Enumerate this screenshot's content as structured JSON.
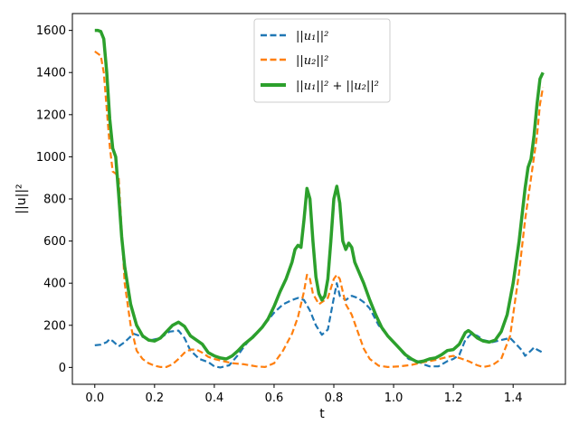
{
  "chart_data": {
    "type": "line",
    "xlabel": "t",
    "ylabel": "||u||²",
    "xlim": [
      -0.075,
      1.575
    ],
    "ylim": [
      -80,
      1680
    ],
    "x_ticks": [
      0.0,
      0.2,
      0.4,
      0.6,
      0.8,
      1.0,
      1.2,
      1.4
    ],
    "x_tick_labels": [
      "0.0",
      "0.2",
      "0.4",
      "0.6",
      "0.8",
      "1.0",
      "1.2",
      "1.4"
    ],
    "y_ticks": [
      0,
      200,
      400,
      600,
      800,
      1000,
      1200,
      1400,
      1600
    ],
    "y_tick_labels": [
      "0",
      "200",
      "400",
      "600",
      "800",
      "1000",
      "1200",
      "1400",
      "1600"
    ],
    "grid": false,
    "legend_position": "top-center",
    "series": [
      {
        "name": "||u₁||²",
        "color": "#1f77b4",
        "style": "dashed",
        "points": [
          [
            0.0,
            105
          ],
          [
            0.02,
            108
          ],
          [
            0.04,
            120
          ],
          [
            0.05,
            135
          ],
          [
            0.06,
            125
          ],
          [
            0.08,
            100
          ],
          [
            0.1,
            120
          ],
          [
            0.13,
            160
          ],
          [
            0.16,
            145
          ],
          [
            0.19,
            130
          ],
          [
            0.22,
            140
          ],
          [
            0.25,
            170
          ],
          [
            0.28,
            175
          ],
          [
            0.3,
            140
          ],
          [
            0.32,
            80
          ],
          [
            0.35,
            40
          ],
          [
            0.38,
            25
          ],
          [
            0.4,
            5
          ],
          [
            0.42,
            0
          ],
          [
            0.45,
            10
          ],
          [
            0.48,
            60
          ],
          [
            0.5,
            100
          ],
          [
            0.53,
            150
          ],
          [
            0.56,
            190
          ],
          [
            0.6,
            260
          ],
          [
            0.63,
            300
          ],
          [
            0.66,
            320
          ],
          [
            0.68,
            330
          ],
          [
            0.7,
            320
          ],
          [
            0.72,
            270
          ],
          [
            0.74,
            200
          ],
          [
            0.76,
            155
          ],
          [
            0.78,
            180
          ],
          [
            0.8,
            330
          ],
          [
            0.81,
            400
          ],
          [
            0.82,
            340
          ],
          [
            0.84,
            320
          ],
          [
            0.86,
            340
          ],
          [
            0.88,
            330
          ],
          [
            0.9,
            310
          ],
          [
            0.92,
            280
          ],
          [
            0.95,
            200
          ],
          [
            0.98,
            150
          ],
          [
            1.0,
            120
          ],
          [
            1.03,
            70
          ],
          [
            1.05,
            40
          ],
          [
            1.08,
            30
          ],
          [
            1.1,
            15
          ],
          [
            1.12,
            5
          ],
          [
            1.15,
            5
          ],
          [
            1.18,
            30
          ],
          [
            1.2,
            40
          ],
          [
            1.22,
            60
          ],
          [
            1.24,
            130
          ],
          [
            1.26,
            160
          ],
          [
            1.28,
            150
          ],
          [
            1.3,
            130
          ],
          [
            1.33,
            120
          ],
          [
            1.36,
            130
          ],
          [
            1.39,
            140
          ],
          [
            1.41,
            110
          ],
          [
            1.43,
            80
          ],
          [
            1.44,
            55
          ],
          [
            1.46,
            80
          ],
          [
            1.47,
            95
          ],
          [
            1.48,
            85
          ],
          [
            1.5,
            70
          ]
        ]
      },
      {
        "name": "||u₂||²",
        "color": "#ff7f0e",
        "style": "dashed",
        "points": [
          [
            0.0,
            1500
          ],
          [
            0.02,
            1480
          ],
          [
            0.03,
            1400
          ],
          [
            0.05,
            1050
          ],
          [
            0.06,
            930
          ],
          [
            0.07,
            920
          ],
          [
            0.08,
            900
          ],
          [
            0.1,
            400
          ],
          [
            0.12,
            200
          ],
          [
            0.14,
            80
          ],
          [
            0.16,
            40
          ],
          [
            0.18,
            20
          ],
          [
            0.2,
            8
          ],
          [
            0.22,
            2
          ],
          [
            0.24,
            2
          ],
          [
            0.26,
            15
          ],
          [
            0.28,
            40
          ],
          [
            0.3,
            70
          ],
          [
            0.32,
            85
          ],
          [
            0.34,
            85
          ],
          [
            0.36,
            70
          ],
          [
            0.38,
            50
          ],
          [
            0.4,
            40
          ],
          [
            0.43,
            30
          ],
          [
            0.46,
            20
          ],
          [
            0.5,
            15
          ],
          [
            0.54,
            5
          ],
          [
            0.57,
            2
          ],
          [
            0.6,
            20
          ],
          [
            0.63,
            80
          ],
          [
            0.66,
            160
          ],
          [
            0.68,
            240
          ],
          [
            0.7,
            360
          ],
          [
            0.71,
            440
          ],
          [
            0.72,
            420
          ],
          [
            0.73,
            350
          ],
          [
            0.75,
            300
          ],
          [
            0.78,
            330
          ],
          [
            0.8,
            420
          ],
          [
            0.81,
            440
          ],
          [
            0.82,
            420
          ],
          [
            0.84,
            300
          ],
          [
            0.86,
            250
          ],
          [
            0.88,
            170
          ],
          [
            0.9,
            90
          ],
          [
            0.92,
            40
          ],
          [
            0.95,
            8
          ],
          [
            0.98,
            2
          ],
          [
            1.02,
            5
          ],
          [
            1.06,
            12
          ],
          [
            1.1,
            25
          ],
          [
            1.14,
            35
          ],
          [
            1.18,
            50
          ],
          [
            1.2,
            55
          ],
          [
            1.22,
            45
          ],
          [
            1.25,
            30
          ],
          [
            1.28,
            10
          ],
          [
            1.3,
            2
          ],
          [
            1.33,
            10
          ],
          [
            1.36,
            40
          ],
          [
            1.39,
            150
          ],
          [
            1.42,
            450
          ],
          [
            1.44,
            700
          ],
          [
            1.46,
            900
          ],
          [
            1.48,
            1100
          ],
          [
            1.49,
            1250
          ],
          [
            1.5,
            1330
          ]
        ]
      },
      {
        "name": "||u₁||² + ||u₂||²",
        "color": "#2ca02c",
        "style": "solid",
        "points": [
          [
            0.0,
            1600
          ],
          [
            0.01,
            1600
          ],
          [
            0.02,
            1595
          ],
          [
            0.03,
            1560
          ],
          [
            0.04,
            1400
          ],
          [
            0.05,
            1180
          ],
          [
            0.06,
            1040
          ],
          [
            0.07,
            1000
          ],
          [
            0.08,
            820
          ],
          [
            0.09,
            620
          ],
          [
            0.1,
            480
          ],
          [
            0.12,
            300
          ],
          [
            0.14,
            200
          ],
          [
            0.16,
            150
          ],
          [
            0.18,
            130
          ],
          [
            0.2,
            125
          ],
          [
            0.22,
            140
          ],
          [
            0.24,
            170
          ],
          [
            0.26,
            200
          ],
          [
            0.28,
            215
          ],
          [
            0.3,
            195
          ],
          [
            0.32,
            150
          ],
          [
            0.34,
            130
          ],
          [
            0.36,
            110
          ],
          [
            0.38,
            70
          ],
          [
            0.4,
            55
          ],
          [
            0.42,
            45
          ],
          [
            0.44,
            40
          ],
          [
            0.46,
            55
          ],
          [
            0.48,
            80
          ],
          [
            0.5,
            110
          ],
          [
            0.53,
            145
          ],
          [
            0.56,
            190
          ],
          [
            0.58,
            230
          ],
          [
            0.6,
            290
          ],
          [
            0.62,
            360
          ],
          [
            0.64,
            420
          ],
          [
            0.66,
            500
          ],
          [
            0.67,
            560
          ],
          [
            0.68,
            580
          ],
          [
            0.69,
            570
          ],
          [
            0.7,
            700
          ],
          [
            0.71,
            850
          ],
          [
            0.72,
            800
          ],
          [
            0.73,
            600
          ],
          [
            0.74,
            430
          ],
          [
            0.75,
            350
          ],
          [
            0.76,
            320
          ],
          [
            0.77,
            340
          ],
          [
            0.78,
            420
          ],
          [
            0.79,
            600
          ],
          [
            0.8,
            800
          ],
          [
            0.81,
            860
          ],
          [
            0.82,
            780
          ],
          [
            0.83,
            600
          ],
          [
            0.84,
            560
          ],
          [
            0.85,
            590
          ],
          [
            0.86,
            570
          ],
          [
            0.87,
            500
          ],
          [
            0.9,
            400
          ],
          [
            0.92,
            320
          ],
          [
            0.94,
            250
          ],
          [
            0.96,
            190
          ],
          [
            0.98,
            150
          ],
          [
            1.0,
            120
          ],
          [
            1.02,
            90
          ],
          [
            1.04,
            60
          ],
          [
            1.06,
            40
          ],
          [
            1.08,
            25
          ],
          [
            1.1,
            30
          ],
          [
            1.12,
            40
          ],
          [
            1.14,
            45
          ],
          [
            1.16,
            60
          ],
          [
            1.18,
            80
          ],
          [
            1.2,
            85
          ],
          [
            1.22,
            110
          ],
          [
            1.24,
            165
          ],
          [
            1.25,
            175
          ],
          [
            1.26,
            165
          ],
          [
            1.28,
            140
          ],
          [
            1.3,
            125
          ],
          [
            1.32,
            120
          ],
          [
            1.34,
            130
          ],
          [
            1.36,
            170
          ],
          [
            1.38,
            250
          ],
          [
            1.4,
            400
          ],
          [
            1.42,
            600
          ],
          [
            1.44,
            850
          ],
          [
            1.45,
            950
          ],
          [
            1.46,
            990
          ],
          [
            1.47,
            1100
          ],
          [
            1.48,
            1250
          ],
          [
            1.49,
            1370
          ],
          [
            1.5,
            1400
          ]
        ]
      }
    ]
  },
  "colors": {
    "series_1": "#1f77b4",
    "series_2": "#ff7f0e",
    "series_3": "#2ca02c",
    "axis": "#000000",
    "legend_border": "#cccccc"
  }
}
